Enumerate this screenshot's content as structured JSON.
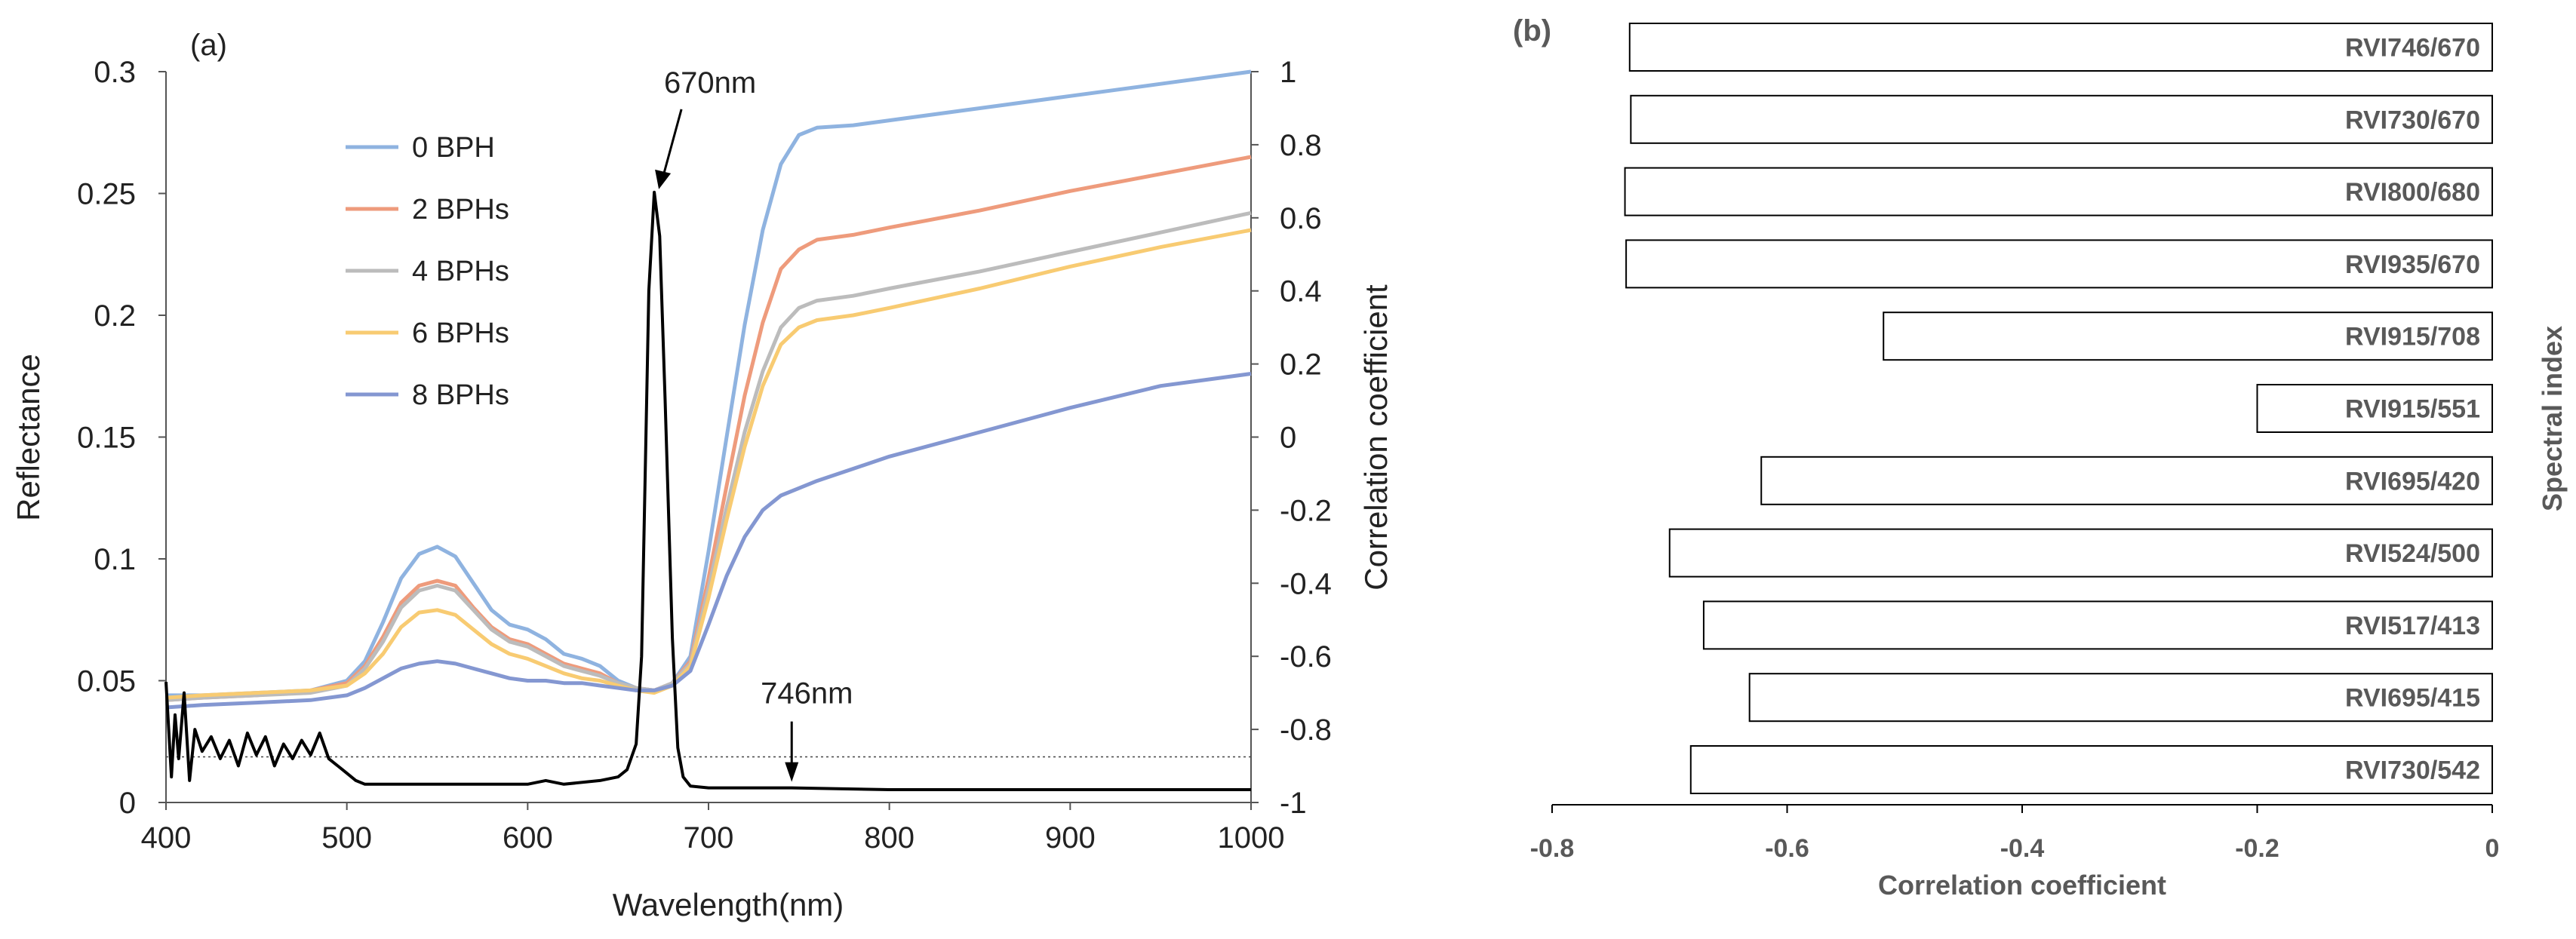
{
  "chart_data": [
    {
      "panel_label": "(a)",
      "type": "line",
      "xlabel": "Wavelength(nm)",
      "ylabel": "Reflectance",
      "y2label": "Correlation coefficient",
      "xlim": [
        400,
        1000
      ],
      "ylim": [
        0,
        0.3
      ],
      "y2lim": [
        -1,
        1
      ],
      "x_ticks": [
        "400",
        "500",
        "600",
        "700",
        "800",
        "900",
        "1000"
      ],
      "y_ticks": [
        "0",
        "0.05",
        "0.1",
        "0.15",
        "0.2",
        "0.25",
        "0.3"
      ],
      "y2_ticks": [
        "-1",
        "-0.8",
        "-0.6",
        "-0.4",
        "-0.2",
        "0",
        "0.2",
        "0.4",
        "0.6",
        "0.8",
        "1"
      ],
      "legend_position": "top-left",
      "series": [
        {
          "name": "0 BPH",
          "color": "#8fb3e0",
          "x": [
            400,
            420,
            450,
            480,
            500,
            510,
            520,
            530,
            540,
            550,
            560,
            570,
            580,
            590,
            600,
            610,
            620,
            630,
            640,
            650,
            660,
            670,
            680,
            690,
            700,
            710,
            720,
            730,
            740,
            750,
            760,
            780,
            800,
            850,
            900,
            950,
            1000
          ],
          "y": [
            0.044,
            0.044,
            0.045,
            0.046,
            0.05,
            0.058,
            0.074,
            0.092,
            0.102,
            0.105,
            0.101,
            0.09,
            0.079,
            0.073,
            0.071,
            0.067,
            0.061,
            0.059,
            0.056,
            0.05,
            0.047,
            0.046,
            0.049,
            0.06,
            0.103,
            0.15,
            0.196,
            0.235,
            0.262,
            0.274,
            0.277,
            0.278,
            0.28,
            0.285,
            0.29,
            0.295,
            0.3
          ]
        },
        {
          "name": "2 BPHs",
          "color": "#ee9b7c",
          "x": [
            400,
            420,
            450,
            480,
            500,
            510,
            520,
            530,
            540,
            550,
            560,
            570,
            580,
            590,
            600,
            610,
            620,
            630,
            640,
            650,
            660,
            670,
            680,
            690,
            700,
            710,
            720,
            730,
            740,
            750,
            760,
            780,
            800,
            850,
            900,
            950,
            1000
          ],
          "y": [
            0.042,
            0.043,
            0.044,
            0.046,
            0.049,
            0.056,
            0.068,
            0.082,
            0.089,
            0.091,
            0.089,
            0.08,
            0.072,
            0.067,
            0.065,
            0.061,
            0.057,
            0.055,
            0.053,
            0.049,
            0.047,
            0.046,
            0.049,
            0.058,
            0.092,
            0.13,
            0.167,
            0.197,
            0.219,
            0.227,
            0.231,
            0.233,
            0.236,
            0.243,
            0.251,
            0.258,
            0.265
          ]
        },
        {
          "name": "4 BPHs",
          "color": "#bcbcbc",
          "x": [
            400,
            420,
            450,
            480,
            500,
            510,
            520,
            530,
            540,
            550,
            560,
            570,
            580,
            590,
            600,
            610,
            620,
            630,
            640,
            650,
            660,
            670,
            680,
            690,
            700,
            710,
            720,
            730,
            740,
            750,
            760,
            780,
            800,
            850,
            900,
            950,
            1000
          ],
          "y": [
            0.042,
            0.043,
            0.044,
            0.045,
            0.048,
            0.055,
            0.066,
            0.08,
            0.087,
            0.089,
            0.087,
            0.079,
            0.071,
            0.066,
            0.064,
            0.06,
            0.056,
            0.054,
            0.052,
            0.049,
            0.047,
            0.046,
            0.049,
            0.057,
            0.088,
            0.121,
            0.152,
            0.177,
            0.195,
            0.203,
            0.206,
            0.208,
            0.211,
            0.218,
            0.226,
            0.234,
            0.242
          ]
        },
        {
          "name": "6 BPHs",
          "color": "#f8cb72",
          "x": [
            400,
            420,
            450,
            480,
            500,
            510,
            520,
            530,
            540,
            550,
            560,
            570,
            580,
            590,
            600,
            610,
            620,
            630,
            640,
            650,
            660,
            670,
            680,
            690,
            700,
            710,
            720,
            730,
            740,
            750,
            760,
            780,
            800,
            850,
            900,
            950,
            1000
          ],
          "y": [
            0.043,
            0.044,
            0.045,
            0.046,
            0.048,
            0.053,
            0.061,
            0.072,
            0.078,
            0.079,
            0.077,
            0.071,
            0.065,
            0.061,
            0.059,
            0.056,
            0.053,
            0.051,
            0.05,
            0.048,
            0.046,
            0.045,
            0.048,
            0.056,
            0.084,
            0.116,
            0.146,
            0.171,
            0.188,
            0.195,
            0.198,
            0.2,
            0.203,
            0.211,
            0.22,
            0.228,
            0.235
          ]
        },
        {
          "name": "8 BPHs",
          "color": "#8497d1",
          "x": [
            400,
            420,
            450,
            480,
            500,
            510,
            520,
            530,
            540,
            550,
            560,
            570,
            580,
            590,
            600,
            610,
            620,
            630,
            640,
            650,
            660,
            670,
            680,
            690,
            700,
            710,
            720,
            730,
            740,
            750,
            760,
            780,
            800,
            850,
            900,
            950,
            1000
          ],
          "y": [
            0.039,
            0.04,
            0.041,
            0.042,
            0.044,
            0.047,
            0.051,
            0.055,
            0.057,
            0.058,
            0.057,
            0.055,
            0.053,
            0.051,
            0.05,
            0.05,
            0.049,
            0.049,
            0.048,
            0.047,
            0.046,
            0.046,
            0.048,
            0.054,
            0.073,
            0.093,
            0.109,
            0.12,
            0.126,
            0.129,
            0.132,
            0.137,
            0.142,
            0.152,
            0.162,
            0.171,
            0.176
          ]
        },
        {
          "name": "Correlation coefficient",
          "color": "#000000",
          "axis": "y2",
          "x": [
            400,
            403,
            405,
            407,
            410,
            413,
            416,
            420,
            425,
            430,
            435,
            440,
            445,
            450,
            455,
            460,
            465,
            470,
            475,
            480,
            485,
            490,
            495,
            500,
            505,
            510,
            520,
            530,
            540,
            560,
            580,
            600,
            610,
            620,
            640,
            650,
            655,
            660,
            663,
            665,
            667,
            670,
            673,
            676,
            680,
            683,
            686,
            690,
            700,
            720,
            746,
            800,
            850,
            900,
            950,
            1000
          ],
          "y": [
            -0.67,
            -0.93,
            -0.76,
            -0.88,
            -0.7,
            -0.94,
            -0.8,
            -0.86,
            -0.82,
            -0.88,
            -0.83,
            -0.9,
            -0.81,
            -0.87,
            -0.82,
            -0.9,
            -0.84,
            -0.88,
            -0.83,
            -0.87,
            -0.81,
            -0.88,
            -0.9,
            -0.92,
            -0.94,
            -0.95,
            -0.95,
            -0.95,
            -0.95,
            -0.95,
            -0.95,
            -0.95,
            -0.94,
            -0.95,
            -0.94,
            -0.93,
            -0.91,
            -0.84,
            -0.6,
            -0.1,
            0.4,
            0.67,
            0.55,
            0.1,
            -0.55,
            -0.85,
            -0.93,
            -0.955,
            -0.96,
            -0.96,
            -0.96,
            -0.965,
            -0.965,
            -0.965,
            -0.965,
            -0.965
          ]
        }
      ],
      "threshold_line": {
        "axis": "y2",
        "value": -0.875,
        "style": "dotted"
      },
      "annotations": [
        {
          "text": "670nm",
          "x": 670,
          "y2": 0.67,
          "arrow": true
        },
        {
          "text": "746nm",
          "x": 746,
          "y2": -0.96,
          "arrow": true
        }
      ]
    },
    {
      "panel_label": "(b)",
      "type": "bar",
      "orientation": "horizontal",
      "xlabel": "Correlation coefficient",
      "ylabel": "Spectral index",
      "xlim": [
        -0.8,
        0
      ],
      "x_ticks": [
        "-0.8",
        "-0.6",
        "-0.4",
        "-0.2",
        "0"
      ],
      "categories": [
        "RVI746/670",
        "RVI730/670",
        "RVI800/680",
        "RVI935/670",
        "RVI915/708",
        "RVI915/551",
        "RVI695/420",
        "RVI524/500",
        "RVI517/413",
        "RVI695/415",
        "RVI730/542"
      ],
      "values": [
        -0.734,
        -0.733,
        -0.738,
        -0.737,
        -0.518,
        -0.2,
        -0.622,
        -0.7,
        -0.671,
        -0.632,
        -0.682
      ]
    }
  ]
}
